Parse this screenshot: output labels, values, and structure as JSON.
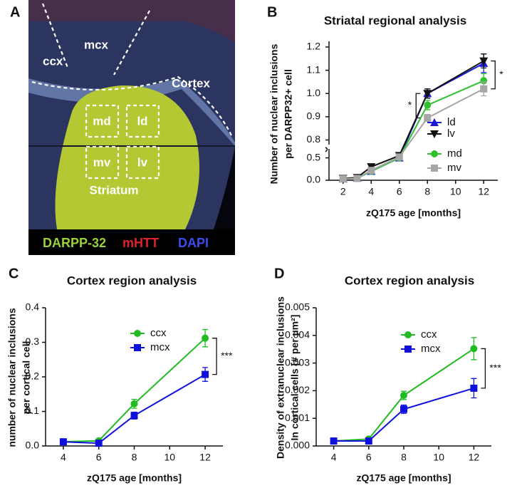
{
  "image_panel": {
    "label": "A",
    "region_labels": [
      "ccx",
      "mcx",
      "Cortex",
      "md",
      "ld",
      "mv",
      "lv",
      "Striatum"
    ],
    "stain_labels": [
      {
        "text": "DARPP-32",
        "color": "#9bd13c"
      },
      {
        "text": "mHTT",
        "color": "#e0202a"
      },
      {
        "text": "DAPI",
        "color": "#3a4cf0"
      }
    ]
  },
  "chart_data": [
    {
      "type": "line",
      "label": "B",
      "title": "Striatal regional analysis",
      "xlabel": "zQ175 age [months]",
      "ylabel": [
        "Number of nuclear inclusions",
        "per DARPP32+ cell"
      ],
      "x": [
        2,
        3,
        4,
        6,
        8,
        12
      ],
      "xlim": [
        1,
        13
      ],
      "xticks": [
        2,
        4,
        6,
        8,
        10,
        12
      ],
      "ylim": [
        0,
        1.2
      ],
      "ybreak": [
        0.7,
        0.78
      ],
      "yticks": [
        {
          "value": 0,
          "label": "0.0"
        },
        0.5,
        0.8,
        0.9,
        {
          "value": 1,
          "label": "1.0"
        },
        1.1,
        1.2
      ],
      "series": [
        {
          "name": "ld",
          "color": "#1a1ad8",
          "marker": "triangle-up",
          "values": [
            0.03,
            0.05,
            0.2,
            0.5,
            1.0,
            1.13
          ],
          "errors": [
            0.01,
            0.01,
            0.02,
            0.02,
            0.02,
            0.04
          ]
        },
        {
          "name": "lv",
          "color": "#111111",
          "marker": "triangle-down",
          "values": [
            0.04,
            0.06,
            0.3,
            0.55,
            1.0,
            1.14
          ],
          "errors": [
            0.01,
            0.01,
            0.02,
            0.02,
            0.02,
            0.03
          ]
        },
        {
          "name": "md",
          "color": "#2ec22e",
          "marker": "circle",
          "values": [
            0.03,
            0.04,
            0.2,
            0.5,
            0.95,
            1.055
          ],
          "errors": [
            0.01,
            0.01,
            0.02,
            0.02,
            0.02,
            0.03
          ]
        },
        {
          "name": "mv",
          "color": "#a6a6a6",
          "marker": "square",
          "values": [
            0.03,
            0.04,
            0.22,
            0.52,
            0.895,
            1.02
          ],
          "errors": [
            0.01,
            0.01,
            0.02,
            0.02,
            0.015,
            0.03
          ]
        }
      ],
      "annotations": [
        "*",
        "*"
      ]
    },
    {
      "type": "line",
      "label": "C",
      "title": "Cortex region analysis",
      "xlabel": "zQ175 age [months]",
      "ylabel": [
        "number of nuclear inclusions",
        "per cortical cell"
      ],
      "x": [
        4,
        6,
        8,
        12
      ],
      "xlim": [
        3,
        13
      ],
      "xticks": [
        4,
        6,
        8,
        10,
        12
      ],
      "ylim": [
        0,
        0.4
      ],
      "yticks": [
        {
          "value": 0,
          "label": "0.0"
        },
        0.1,
        0.2,
        0.3,
        0.4
      ],
      "series": [
        {
          "name": "ccx",
          "color": "#22bb22",
          "marker": "circle",
          "values": [
            0.012,
            0.015,
            0.122,
            0.312
          ],
          "errors": [
            0.004,
            0.004,
            0.013,
            0.025
          ]
        },
        {
          "name": "mcx",
          "color": "#1010dd",
          "marker": "square",
          "values": [
            0.012,
            0.008,
            0.088,
            0.207
          ],
          "errors": [
            0.004,
            0.004,
            0.01,
            0.02
          ]
        }
      ],
      "annotations": [
        "***"
      ]
    },
    {
      "type": "line",
      "label": "D",
      "title": "Cortex region analysis",
      "xlabel": "zQ175 age [months]",
      "ylabel": [
        "Density of extranuclear inclusions",
        "In cortical cells  [# per µm²]"
      ],
      "x": [
        4,
        6,
        8,
        12
      ],
      "xlim": [
        3,
        13
      ],
      "xticks": [
        4,
        6,
        8,
        10,
        12
      ],
      "ylim": [
        0,
        0.005
      ],
      "yticks": [
        {
          "value": 0,
          "label": "0.000"
        },
        0.001,
        0.002,
        0.003,
        0.004,
        0.005
      ],
      "series": [
        {
          "name": "ccx",
          "color": "#22bb22",
          "marker": "circle",
          "values": [
            0.00018,
            0.00025,
            0.00183,
            0.00352
          ],
          "errors": [
            5e-05,
            5e-05,
            0.00015,
            0.0004
          ]
        },
        {
          "name": "mcx",
          "color": "#1010dd",
          "marker": "square",
          "values": [
            0.00018,
            0.00018,
            0.00133,
            0.00209
          ],
          "errors": [
            5e-05,
            5e-05,
            0.00015,
            0.00035
          ]
        }
      ],
      "annotations": [
        "***"
      ]
    }
  ]
}
